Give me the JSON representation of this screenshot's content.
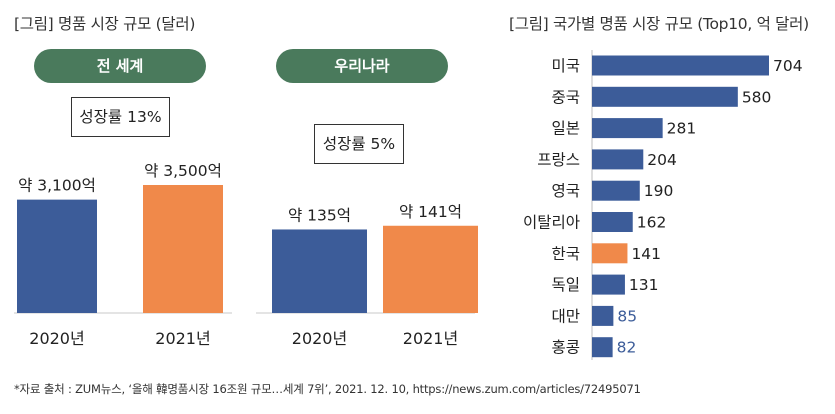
{
  "left_title": "[그림] 명품 시장 규모 (달러)",
  "right_title": "[그림] 국가별 명품 시장 규모 (Top10, 억 달러)",
  "footnote": "*자료 출처 : ZUM뉴스, ‘올해 韓명품시장 16조원 규모…세계 7위’, 2021. 12. 10,   https://news.zum.com/articles/72495071",
  "colors": {
    "blue": "#3c5c99",
    "orange": "#f0894a",
    "green": "#4a7a5c"
  },
  "chart_data": [
    {
      "type": "bar",
      "title": "전 세계",
      "growth": "성장률 13%",
      "categories": [
        "2020년",
        "2021년"
      ],
      "values": [
        3100,
        3500
      ],
      "value_labels": [
        "약 3,100억",
        "약 3,500억"
      ],
      "ylim": [
        0,
        3500
      ]
    },
    {
      "type": "bar",
      "title": "우리나라",
      "growth": "성장률 5%",
      "categories": [
        "2020년",
        "2021년"
      ],
      "values": [
        135,
        141
      ],
      "value_labels": [
        "약 135억",
        "약 141억"
      ],
      "ylim": [
        0,
        160
      ]
    },
    {
      "type": "bar",
      "orientation": "horizontal",
      "title": "[그림] 국가별 명품 시장 규모 (Top10, 억 달러)",
      "categories": [
        "미국",
        "중국",
        "일본",
        "프랑스",
        "영국",
        "이탈리아",
        "한국",
        "독일",
        "대만",
        "홍콩"
      ],
      "values": [
        704,
        580,
        281,
        204,
        190,
        162,
        141,
        131,
        85,
        82
      ],
      "highlight": "한국",
      "xlim": [
        0,
        704
      ]
    }
  ]
}
